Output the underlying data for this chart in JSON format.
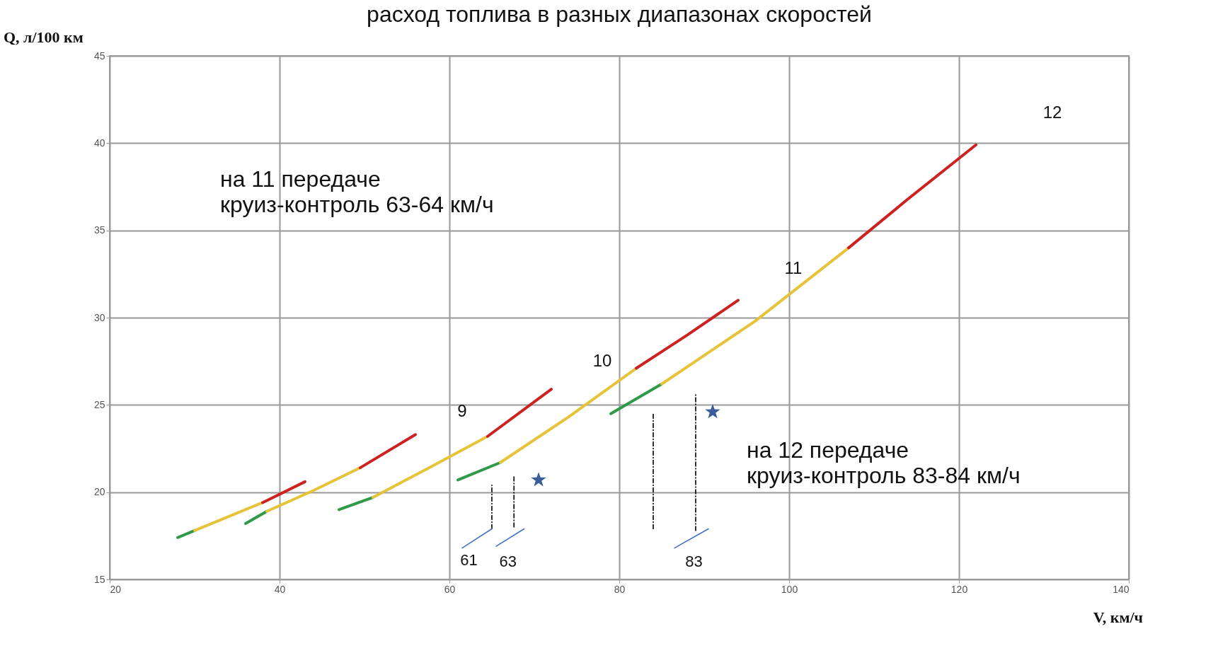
{
  "chart_data": {
    "type": "line",
    "title": "расход топлива в разных диапазонах скоростей",
    "xlabel": "V, км/ч",
    "ylabel": "Q, л/100 км",
    "xlim": [
      20,
      140
    ],
    "xticks": [
      20,
      40,
      60,
      80,
      100,
      120,
      140
    ],
    "ylim": [
      15,
      45
    ],
    "yticks": [
      15,
      20,
      25,
      30,
      35,
      40,
      45
    ],
    "grid": true,
    "marker": "none",
    "line_style": "solid",
    "series": [
      {
        "color": "#2e9a4a",
        "x": [
          28,
          30
        ],
        "values": [
          17.4,
          17.8
        ]
      },
      {
        "color": "#e6c43a",
        "x": [
          30,
          34,
          38
        ],
        "values": [
          17.8,
          18.6,
          19.4
        ]
      },
      {
        "color": "#cc2222",
        "x": [
          38,
          43
        ],
        "values": [
          19.4,
          20.6
        ]
      },
      {
        "color": "#2e9a4a",
        "x": [
          36,
          38.5
        ],
        "values": [
          18.2,
          18.9
        ]
      },
      {
        "color": "#e6c43a",
        "x": [
          38.5,
          44,
          49.5
        ],
        "values": [
          18.9,
          20.1,
          21.4
        ]
      },
      {
        "color": "#cc2222",
        "x": [
          49.5,
          56
        ],
        "values": [
          21.4,
          23.3
        ]
      },
      {
        "color": "#2e9a4a",
        "x": [
          47,
          51
        ],
        "values": [
          19.0,
          19.7
        ]
      },
      {
        "color": "#e6c43a",
        "x": [
          51,
          58,
          64.5
        ],
        "values": [
          19.7,
          21.5,
          23.2
        ]
      },
      {
        "color": "#cc2222",
        "x": [
          64.5,
          72
        ],
        "values": [
          23.2,
          25.9
        ]
      },
      {
        "color": "#2e9a4a",
        "x": [
          61,
          66
        ],
        "values": [
          20.7,
          21.7
        ]
      },
      {
        "color": "#e6c43a",
        "x": [
          66,
          74,
          82
        ],
        "values": [
          21.7,
          24.3,
          27.1
        ]
      },
      {
        "color": "#cc2222",
        "x": [
          82,
          88,
          94
        ],
        "values": [
          27.1,
          29.0,
          31.0
        ]
      },
      {
        "color": "#2e9a4a",
        "x": [
          79,
          85
        ],
        "values": [
          24.5,
          26.2
        ]
      },
      {
        "color": "#e6c43a",
        "x": [
          85,
          96,
          107
        ],
        "values": [
          26.2,
          29.8,
          34.0
        ]
      },
      {
        "color": "#cc2222",
        "x": [
          107,
          114,
          122
        ],
        "values": [
          34.0,
          36.8,
          39.9
        ]
      },
      {
        "color": "#000000",
        "line_style": "dashed",
        "x": [
          65,
          65
        ],
        "values": [
          17.9,
          20.4
        ]
      },
      {
        "color": "#000000",
        "line_style": "dashed",
        "x": [
          67.6,
          67.6
        ],
        "values": [
          18.0,
          20.9
        ]
      },
      {
        "color": "#000000",
        "line_style": "dashed",
        "x": [
          84,
          84
        ],
        "values": [
          17.9,
          24.5
        ]
      },
      {
        "color": "#000000",
        "line_style": "dashed",
        "x": [
          89,
          89
        ],
        "values": [
          17.8,
          25.7
        ]
      },
      {
        "color": "#4472c4",
        "line_style": "solid",
        "x": [
          65,
          61.5
        ],
        "values": [
          17.9,
          16.8
        ]
      },
      {
        "color": "#4472c4",
        "line_style": "solid",
        "x": [
          65.5,
          68.8
        ],
        "values": [
          16.9,
          17.9
        ]
      },
      {
        "color": "#4472c4",
        "line_style": "solid",
        "x": [
          86.5,
          90.5
        ],
        "values": [
          16.8,
          17.9
        ]
      },
      {
        "type": "scatter",
        "marker": "star",
        "color": "#3b5c9a",
        "x": [
          70.5,
          91
        ],
        "values": [
          20.7,
          24.6
        ]
      }
    ],
    "annotations": [
      "9",
      "10",
      "11",
      "12",
      "61",
      "63",
      "83",
      "на 11 передаче\nкруиз-контроль 63-64 км/ч",
      "на 12 передаче\nкруиз-контроль 83-84 км/ч"
    ]
  }
}
